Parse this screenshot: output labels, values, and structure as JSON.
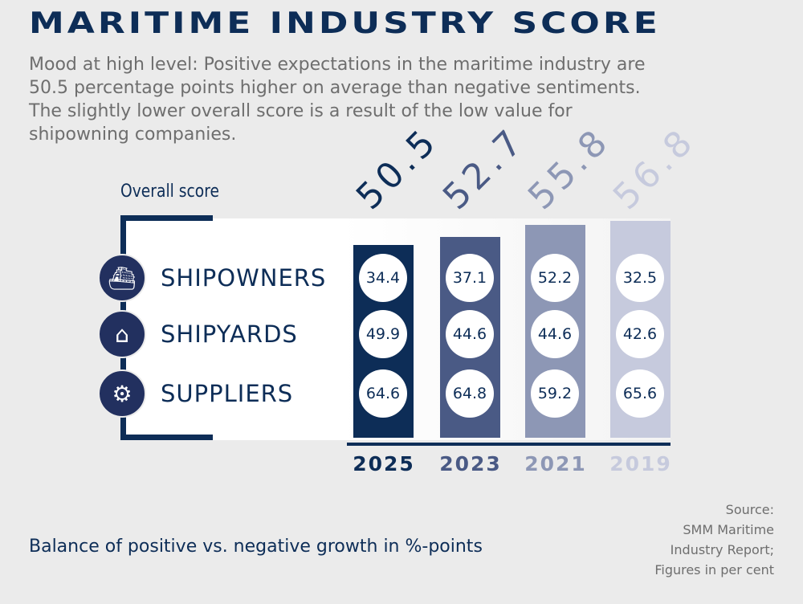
{
  "title": "MARITIME INDUSTRY SCORE",
  "intro": "Mood at high level: Positive expectations in the maritime industry are 50.5 percentage points higher on average than negative sentiments. The slightly lower overall score is a result of the low value for shipowning companies.",
  "note": "Balance of positive vs. negative growth in %-points",
  "source": [
    "Source:",
    "SMM Maritime",
    "Industry Report;",
    "Figures in per cent"
  ],
  "chart_data": {
    "type": "bar",
    "title": "Overall score",
    "categories": [
      "2025",
      "2023",
      "2021",
      "2019"
    ],
    "overall": [
      50.5,
      52.7,
      55.8,
      56.8
    ],
    "overall_labels": [
      "50.5",
      "52.7",
      "55.8",
      "56.8"
    ],
    "colors": [
      "#0d2d57",
      "#4a5a85",
      "#8d97b5",
      "#c6cadd"
    ],
    "series": [
      {
        "name": "SHIPOWNERS",
        "icon": "ship-icon",
        "values": [
          "34.4",
          "37.1",
          "52.2",
          "32.5"
        ]
      },
      {
        "name": "SHIPYARDS",
        "icon": "shipyard-icon",
        "values": [
          "49.9",
          "44.6",
          "44.6",
          "42.6"
        ]
      },
      {
        "name": "SUPPLIERS",
        "icon": "gears-icon",
        "values": [
          "64.6",
          "64.8",
          "59.2",
          "65.6"
        ]
      }
    ]
  }
}
